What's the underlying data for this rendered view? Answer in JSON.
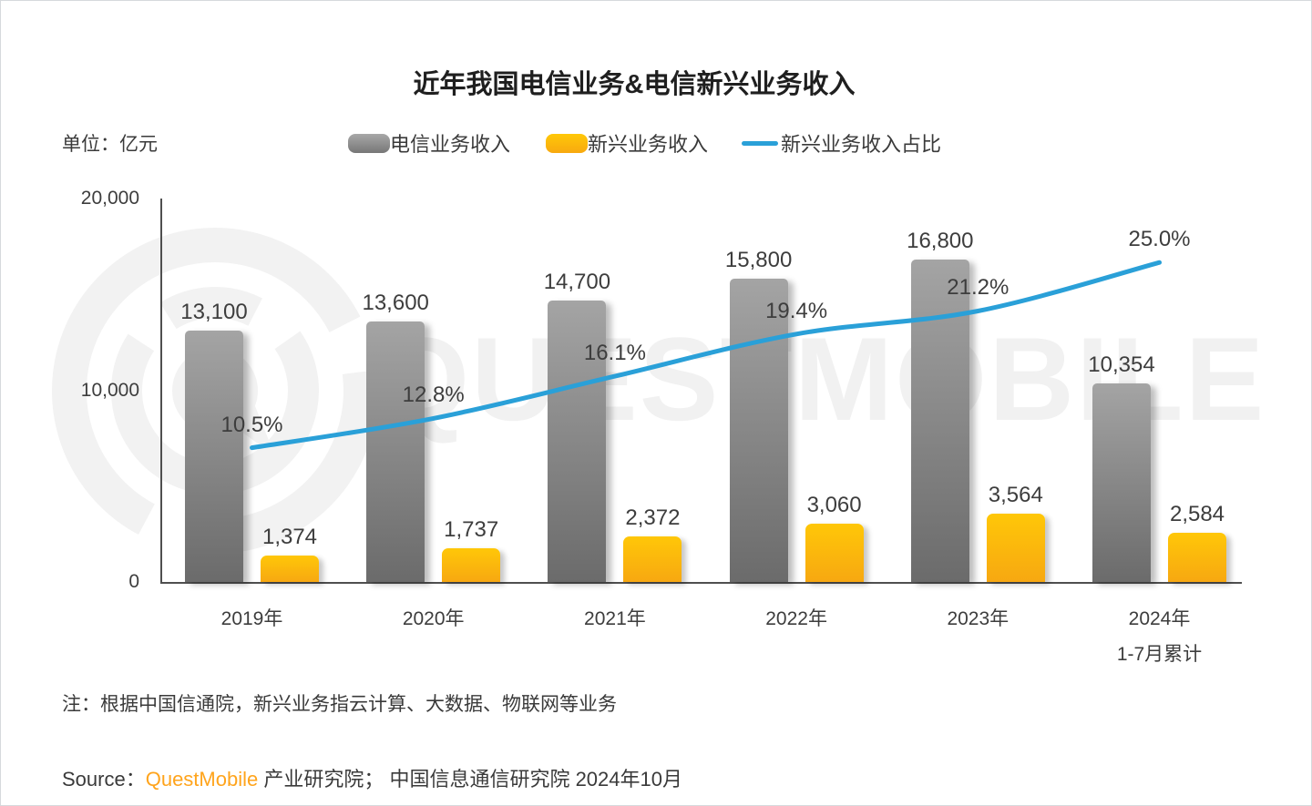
{
  "title": "近年我国电信业务&电信新兴业务收入",
  "unit_label": "单位：亿元",
  "watermark": "QUESTMOBILE",
  "legend": [
    {
      "label": "电信业务收入",
      "type": "bar",
      "color": "#8c8c8c"
    },
    {
      "label": "新兴业务收入",
      "type": "bar",
      "color": "#ffc20e"
    },
    {
      "label": "新兴业务收入占比",
      "type": "line",
      "color": "#2aa0d8"
    }
  ],
  "chart_data": {
    "type": "bar",
    "title": "近年我国电信业务&电信新兴业务收入",
    "ylabel": "单位：亿元",
    "categories": [
      "2019年",
      "2020年",
      "2021年",
      "2022年",
      "2023年",
      "2024年"
    ],
    "category_sublabels": [
      "",
      "",
      "",
      "",
      "",
      "1-7月累计"
    ],
    "series": [
      {
        "name": "电信业务收入",
        "type": "bar",
        "color_top": "#a4a4a4",
        "color_bottom": "#6b6b6b",
        "values": [
          13100,
          13600,
          14700,
          15800,
          16800,
          10354
        ],
        "labels": [
          "13,100",
          "13,600",
          "14,700",
          "15,800",
          "16,800",
          "10,354"
        ]
      },
      {
        "name": "新兴业务收入",
        "type": "bar",
        "color_top": "#ffc708",
        "color_bottom": "#f7a811",
        "values": [
          1374,
          1737,
          2372,
          3060,
          3564,
          2584
        ],
        "labels": [
          "1,374",
          "1,737",
          "2,372",
          "3,060",
          "3,564",
          "2,584"
        ]
      },
      {
        "name": "新兴业务收入占比",
        "type": "line",
        "color": "#2aa0d8",
        "values": [
          10.5,
          12.8,
          16.1,
          19.4,
          21.2,
          25.0
        ],
        "labels": [
          "10.5%",
          "12.8%",
          "16.1%",
          "19.4%",
          "21.2%",
          "25.0%"
        ]
      }
    ],
    "y_axis": {
      "ticks": [
        "0",
        "10,000",
        "20,000"
      ],
      "tick_values": [
        0,
        10000,
        20000
      ],
      "min": 0,
      "max": 20000
    },
    "y2_axis": {
      "min": 0,
      "max": 30
    },
    "grid": false,
    "legend_position": "top"
  },
  "note": "注：根据中国信通院，新兴业务指云计算、大数据、物联网等业务",
  "source": {
    "prefix": "Source：",
    "brand": "QuestMobile",
    "suffix": " 产业研究院； 中国信息通信研究院 2024年10月"
  }
}
